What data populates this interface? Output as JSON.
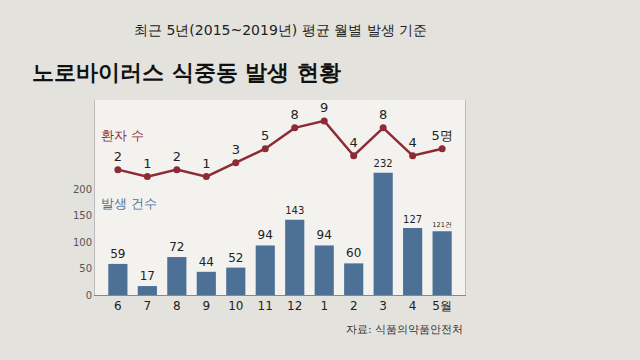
{
  "chart_data": {
    "type": "bar",
    "title": "노로바이러스 식중동 발생 현황",
    "subtitle": "최근 5년(2015~2019년) 평균 월별 발생 기준",
    "source": "자료: 식품의약품안전처",
    "categories": [
      "6",
      "7",
      "8",
      "9",
      "10",
      "11",
      "12",
      "1",
      "2",
      "3",
      "4",
      "5월"
    ],
    "series": [
      {
        "name": "발생 건수",
        "type": "bar",
        "color": "#4d7196",
        "values": [
          59,
          17,
          72,
          44,
          52,
          94,
          143,
          94,
          60,
          232,
          127,
          121
        ],
        "value_labels": [
          "59",
          "17",
          "72",
          "44",
          "52",
          "94",
          "143",
          "94",
          "60",
          "232",
          "127",
          "121건"
        ]
      },
      {
        "name": "환자 수",
        "type": "line",
        "axis": "y2",
        "color": "#8e2a35",
        "marker": "circle",
        "line_style": "solid",
        "values": [
          2,
          1,
          2,
          1,
          3,
          5,
          8,
          9,
          4,
          8,
          4,
          5
        ],
        "value_labels": [
          "2",
          "1",
          "2",
          "1",
          "3",
          "5",
          "8",
          "9",
          "4",
          "8",
          "4",
          "5명"
        ]
      }
    ],
    "ylim": [
      0,
      370
    ],
    "yticks": [
      0,
      50,
      100,
      150,
      200
    ],
    "y2lim": [
      -16,
      12
    ],
    "y2ticks": [],
    "grid": false,
    "data_labels": true
  }
}
